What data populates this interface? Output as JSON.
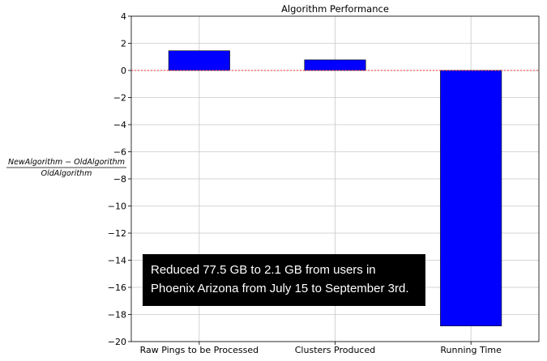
{
  "chart_data": {
    "type": "bar",
    "title": "Algorithm Performance",
    "ylabel_numerator": "NewAlgorithm − OldAlgorithm",
    "ylabel_denominator": "OldAlgorithm",
    "categories": [
      "Raw Pings to be Processed",
      "Clusters Produced",
      "Running Time"
    ],
    "values": [
      1.45,
      0.78,
      -18.85
    ],
    "ylim": [
      -20,
      4
    ],
    "yticks": [
      "4",
      "2",
      "0",
      "−2",
      "−4",
      "−6",
      "−8",
      "−10",
      "−12",
      "−14",
      "−16",
      "−18",
      "−20"
    ],
    "bar_color": "#0000ff",
    "reference_line": {
      "value": 0,
      "color": "#ff3333",
      "style": "dotted"
    },
    "grid": true
  },
  "annotation": {
    "lines": [
      "Reduced 77.5 GB to 2.1 GB from users in",
      "Phoenix Arizona from July 15 to September 3rd."
    ]
  }
}
